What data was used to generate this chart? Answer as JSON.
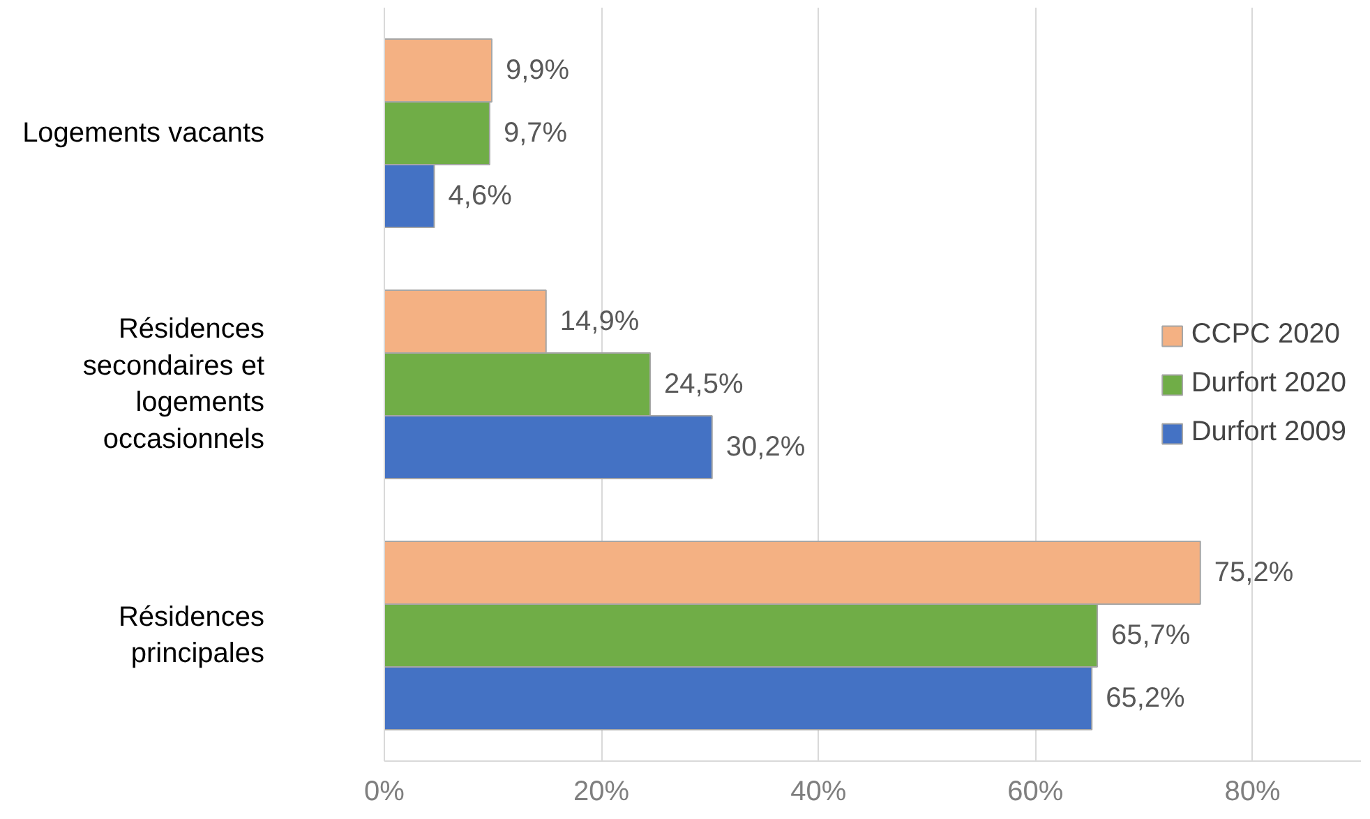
{
  "chart_data": {
    "type": "bar",
    "orientation": "horizontal",
    "categories": [
      "Logements vacants",
      "Résidences secondaires et logements occasionnels",
      "Résidences principales"
    ],
    "series": [
      {
        "name": "CCPC 2020",
        "color": "#f4b183",
        "values": [
          9.9,
          14.9,
          75.2
        ],
        "value_labels": [
          "9,9%",
          "14,9%",
          "75,2%"
        ]
      },
      {
        "name": "Durfort 2020",
        "color": "#70ad47",
        "values": [
          9.7,
          24.5,
          65.7
        ],
        "value_labels": [
          "9,7%",
          "24,5%",
          "65,7%"
        ]
      },
      {
        "name": "Durfort 2009",
        "color": "#4472c4",
        "values": [
          4.6,
          30.2,
          65.2
        ],
        "value_labels": [
          "4,6%",
          "30,2%",
          "65,2%"
        ]
      }
    ],
    "xlim": [
      0,
      90
    ],
    "xticks": [
      {
        "value": 0,
        "label": "0%"
      },
      {
        "value": 20,
        "label": "20%"
      },
      {
        "value": 40,
        "label": "40%"
      },
      {
        "value": 60,
        "label": "60%"
      },
      {
        "value": 80,
        "label": "80%"
      }
    ],
    "grid": "x",
    "legend": "right"
  }
}
